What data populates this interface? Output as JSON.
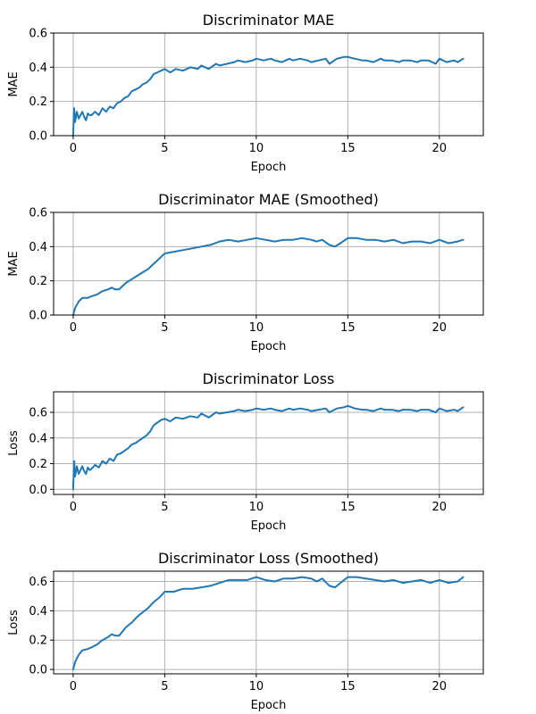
{
  "chart_data": [
    {
      "type": "line",
      "title": "Discriminator MAE",
      "xlabel": "Epoch",
      "ylabel": "MAE",
      "xlim": [
        -1.07,
        22.4
      ],
      "ylim": [
        0,
        0.6
      ],
      "xticks": [
        0,
        5,
        10,
        15,
        20
      ],
      "yticks": [
        0.0,
        0.2,
        0.4,
        0.6
      ],
      "ytick_labels": [
        "0.0",
        "0.2",
        "0.4",
        "0.6"
      ],
      "grid": true,
      "color": "#1f77b4",
      "series": [
        {
          "x": [
            0,
            0.05,
            0.1,
            0.2,
            0.3,
            0.4,
            0.5,
            0.6,
            0.7,
            0.8,
            0.9,
            1,
            1.2,
            1.4,
            1.6,
            1.8,
            2,
            2.2,
            2.4,
            2.6,
            2.8,
            3,
            3.2,
            3.4,
            3.6,
            3.8,
            4,
            4.2,
            4.4,
            4.6,
            4.8,
            5,
            5.3,
            5.6,
            6,
            6.4,
            6.8,
            7,
            7.4,
            7.8,
            8,
            8.4,
            8.8,
            9,
            9.4,
            9.8,
            10,
            10.4,
            10.8,
            11,
            11.4,
            11.8,
            12,
            12.4,
            12.8,
            13,
            13.4,
            13.8,
            14,
            14.4,
            14.8,
            15,
            15.4,
            15.8,
            16,
            16.4,
            16.8,
            17,
            17.4,
            17.8,
            18,
            18.4,
            18.8,
            19,
            19.4,
            19.8,
            20,
            20.4,
            20.8,
            21,
            21.3
          ],
          "y": [
            0.0,
            0.16,
            0.08,
            0.14,
            0.1,
            0.12,
            0.14,
            0.11,
            0.09,
            0.13,
            0.12,
            0.12,
            0.14,
            0.12,
            0.16,
            0.14,
            0.17,
            0.16,
            0.19,
            0.2,
            0.22,
            0.23,
            0.26,
            0.27,
            0.28,
            0.3,
            0.31,
            0.33,
            0.36,
            0.37,
            0.38,
            0.39,
            0.37,
            0.39,
            0.38,
            0.4,
            0.39,
            0.41,
            0.39,
            0.42,
            0.41,
            0.42,
            0.43,
            0.44,
            0.43,
            0.44,
            0.45,
            0.44,
            0.45,
            0.44,
            0.43,
            0.45,
            0.44,
            0.45,
            0.44,
            0.43,
            0.44,
            0.45,
            0.42,
            0.45,
            0.46,
            0.46,
            0.45,
            0.44,
            0.44,
            0.43,
            0.45,
            0.44,
            0.44,
            0.43,
            0.44,
            0.44,
            0.43,
            0.44,
            0.44,
            0.42,
            0.45,
            0.43,
            0.44,
            0.43,
            0.45
          ]
        }
      ]
    },
    {
      "type": "line",
      "title": "Discriminator MAE (Smoothed)",
      "xlabel": "Epoch",
      "ylabel": "MAE",
      "xlim": [
        -1.07,
        22.4
      ],
      "ylim": [
        0,
        0.6
      ],
      "xticks": [
        0,
        5,
        10,
        15,
        20
      ],
      "yticks": [
        0.0,
        0.2,
        0.4,
        0.6
      ],
      "ytick_labels": [
        "0.0",
        "0.2",
        "0.4",
        "0.6"
      ],
      "grid": true,
      "color": "#1f77b4",
      "series": [
        {
          "x": [
            0,
            0.1,
            0.3,
            0.5,
            0.8,
            1,
            1.3,
            1.6,
            1.9,
            2.1,
            2.3,
            2.5,
            2.7,
            2.9,
            3.2,
            3.5,
            3.8,
            4.1,
            4.4,
            4.7,
            5,
            5.5,
            6,
            6.5,
            7,
            7.5,
            8,
            8.5,
            9,
            9.5,
            10,
            10.5,
            11,
            11.5,
            12,
            12.5,
            13,
            13.3,
            13.6,
            14,
            14.3,
            14.6,
            15,
            15.5,
            16,
            16.5,
            17,
            17.5,
            18,
            18.5,
            19,
            19.5,
            20,
            20.5,
            21,
            21.3
          ],
          "y": [
            0.0,
            0.04,
            0.08,
            0.1,
            0.1,
            0.11,
            0.12,
            0.14,
            0.15,
            0.16,
            0.15,
            0.15,
            0.17,
            0.19,
            0.21,
            0.23,
            0.25,
            0.27,
            0.3,
            0.33,
            0.36,
            0.37,
            0.38,
            0.39,
            0.4,
            0.41,
            0.43,
            0.44,
            0.43,
            0.44,
            0.45,
            0.44,
            0.43,
            0.44,
            0.44,
            0.45,
            0.44,
            0.43,
            0.44,
            0.41,
            0.4,
            0.42,
            0.45,
            0.45,
            0.44,
            0.44,
            0.43,
            0.44,
            0.42,
            0.43,
            0.43,
            0.42,
            0.44,
            0.42,
            0.43,
            0.44
          ]
        }
      ]
    },
    {
      "type": "line",
      "title": "Discriminator Loss",
      "xlabel": "Epoch",
      "ylabel": "Loss",
      "xlim": [
        -1.07,
        22.4
      ],
      "ylim": [
        -0.04,
        0.76
      ],
      "xticks": [
        0,
        5,
        10,
        15,
        20
      ],
      "yticks": [
        0.0,
        0.2,
        0.4,
        0.6
      ],
      "ytick_labels": [
        "0.0",
        "0.2",
        "0.4",
        "0.6"
      ],
      "grid": true,
      "color": "#1f77b4",
      "series": [
        {
          "x": [
            0,
            0.05,
            0.1,
            0.2,
            0.3,
            0.4,
            0.5,
            0.6,
            0.7,
            0.8,
            0.9,
            1,
            1.2,
            1.4,
            1.6,
            1.8,
            2,
            2.2,
            2.4,
            2.6,
            2.8,
            3,
            3.2,
            3.4,
            3.6,
            3.8,
            4,
            4.2,
            4.4,
            4.6,
            4.8,
            5,
            5.3,
            5.6,
            6,
            6.4,
            6.8,
            7,
            7.4,
            7.8,
            8,
            8.4,
            8.8,
            9,
            9.4,
            9.8,
            10,
            10.4,
            10.8,
            11,
            11.4,
            11.8,
            12,
            12.4,
            12.8,
            13,
            13.4,
            13.8,
            14,
            14.4,
            14.8,
            15,
            15.4,
            15.8,
            16,
            16.4,
            16.8,
            17,
            17.4,
            17.8,
            18,
            18.4,
            18.8,
            19,
            19.4,
            19.8,
            20,
            20.4,
            20.8,
            21,
            21.3
          ],
          "y": [
            0.0,
            0.22,
            0.1,
            0.18,
            0.12,
            0.15,
            0.18,
            0.14,
            0.12,
            0.17,
            0.15,
            0.16,
            0.19,
            0.17,
            0.22,
            0.2,
            0.24,
            0.22,
            0.27,
            0.28,
            0.3,
            0.32,
            0.35,
            0.36,
            0.38,
            0.4,
            0.42,
            0.45,
            0.5,
            0.52,
            0.54,
            0.55,
            0.53,
            0.56,
            0.55,
            0.57,
            0.56,
            0.59,
            0.56,
            0.6,
            0.59,
            0.6,
            0.61,
            0.62,
            0.61,
            0.62,
            0.63,
            0.62,
            0.63,
            0.62,
            0.61,
            0.63,
            0.62,
            0.63,
            0.62,
            0.61,
            0.62,
            0.63,
            0.6,
            0.63,
            0.64,
            0.65,
            0.63,
            0.62,
            0.62,
            0.61,
            0.63,
            0.62,
            0.62,
            0.61,
            0.62,
            0.62,
            0.61,
            0.62,
            0.62,
            0.6,
            0.63,
            0.61,
            0.62,
            0.61,
            0.64
          ]
        }
      ]
    },
    {
      "type": "line",
      "title": "Discriminator Loss (Smoothed)",
      "xlabel": "Epoch",
      "ylabel": "Loss",
      "xlim": [
        -1.07,
        22.4
      ],
      "ylim": [
        -0.03,
        0.67
      ],
      "xticks": [
        0,
        5,
        10,
        15,
        20
      ],
      "yticks": [
        0.0,
        0.2,
        0.4,
        0.6
      ],
      "ytick_labels": [
        "0.0",
        "0.2",
        "0.4",
        "0.6"
      ],
      "grid": true,
      "color": "#1f77b4",
      "series": [
        {
          "x": [
            0,
            0.1,
            0.3,
            0.5,
            0.8,
            1,
            1.3,
            1.6,
            1.9,
            2.1,
            2.3,
            2.5,
            2.7,
            2.9,
            3.2,
            3.5,
            3.8,
            4.1,
            4.4,
            4.7,
            5,
            5.5,
            6,
            6.5,
            7,
            7.5,
            8,
            8.5,
            9,
            9.5,
            10,
            10.5,
            11,
            11.5,
            12,
            12.5,
            13,
            13.3,
            13.6,
            14,
            14.3,
            14.6,
            15,
            15.5,
            16,
            16.5,
            17,
            17.5,
            18,
            18.5,
            19,
            19.5,
            20,
            20.5,
            21,
            21.3
          ],
          "y": [
            0.0,
            0.05,
            0.1,
            0.13,
            0.14,
            0.15,
            0.17,
            0.2,
            0.22,
            0.24,
            0.23,
            0.23,
            0.26,
            0.29,
            0.32,
            0.36,
            0.39,
            0.42,
            0.46,
            0.49,
            0.53,
            0.53,
            0.55,
            0.55,
            0.56,
            0.57,
            0.59,
            0.61,
            0.61,
            0.61,
            0.63,
            0.61,
            0.6,
            0.62,
            0.62,
            0.63,
            0.62,
            0.6,
            0.62,
            0.57,
            0.56,
            0.59,
            0.63,
            0.63,
            0.62,
            0.61,
            0.6,
            0.61,
            0.59,
            0.6,
            0.61,
            0.59,
            0.61,
            0.59,
            0.6,
            0.63
          ]
        }
      ]
    }
  ]
}
